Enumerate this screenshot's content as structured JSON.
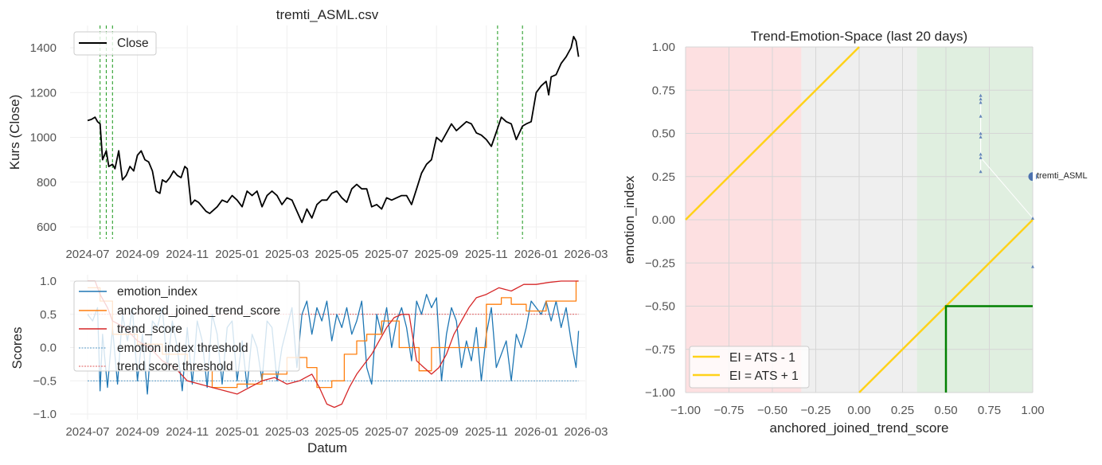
{
  "chart_data": [
    {
      "type": "line",
      "title": "tremti_ASML.csv",
      "xlabel": "",
      "ylabel": "Kurs (Close)",
      "x_ticks": [
        "2024-07",
        "2024-09",
        "2024-11",
        "2025-01",
        "2025-03",
        "2025-05",
        "2025-07",
        "2025-09",
        "2025-11",
        "2026-01",
        "2026-03"
      ],
      "y_ticks": [
        "600",
        "800",
        "1000",
        "1200",
        "1400"
      ],
      "ylim": [
        550,
        1500
      ],
      "xlim_months": [
        -0.7,
        20.3
      ],
      "grid": true,
      "legend": {
        "position": "top-left",
        "entries": [
          "Close"
        ]
      },
      "colors": {
        "close": "#000000",
        "vline": "#2ca02c"
      },
      "signal_lines_months": [
        0.5,
        0.75,
        1.0,
        16.45,
        17.45
      ],
      "series": [
        {
          "name": "Close",
          "x_months": [
            0.0,
            0.15,
            0.3,
            0.4,
            0.5,
            0.6,
            0.75,
            0.85,
            1.0,
            1.1,
            1.25,
            1.4,
            1.55,
            1.7,
            1.85,
            2.0,
            2.15,
            2.3,
            2.45,
            2.6,
            2.75,
            2.9,
            3.0,
            3.15,
            3.3,
            3.45,
            3.6,
            3.75,
            3.9,
            4.0,
            4.15,
            4.3,
            4.45,
            4.6,
            4.75,
            4.9,
            5.0,
            5.2,
            5.4,
            5.6,
            5.8,
            6.0,
            6.2,
            6.4,
            6.6,
            6.8,
            7.0,
            7.2,
            7.4,
            7.6,
            7.8,
            8.0,
            8.2,
            8.4,
            8.6,
            8.8,
            9.0,
            9.2,
            9.4,
            9.6,
            9.8,
            10.0,
            10.2,
            10.4,
            10.6,
            10.8,
            11.0,
            11.2,
            11.4,
            11.6,
            11.8,
            12.0,
            12.2,
            12.4,
            12.6,
            12.8,
            13.0,
            13.2,
            13.4,
            13.6,
            13.8,
            14.0,
            14.2,
            14.4,
            14.6,
            14.8,
            15.0,
            15.2,
            15.4,
            15.6,
            15.8,
            16.0,
            16.2,
            16.45,
            16.6,
            16.8,
            17.0,
            17.2,
            17.45,
            17.6,
            17.8,
            18.0,
            18.2,
            18.4,
            18.5,
            18.6,
            18.8,
            19.0,
            19.2,
            19.4,
            19.5,
            19.6,
            19.7
          ],
          "values": [
            1075,
            1080,
            1090,
            1070,
            1060,
            900,
            940,
            870,
            880,
            860,
            940,
            810,
            830,
            870,
            850,
            920,
            940,
            900,
            890,
            850,
            760,
            750,
            810,
            800,
            820,
            850,
            830,
            820,
            870,
            860,
            700,
            720,
            710,
            690,
            670,
            660,
            670,
            690,
            720,
            710,
            740,
            720,
            690,
            760,
            740,
            760,
            690,
            740,
            760,
            740,
            700,
            730,
            720,
            670,
            620,
            680,
            640,
            700,
            720,
            720,
            750,
            760,
            730,
            710,
            770,
            790,
            770,
            770,
            690,
            700,
            680,
            730,
            720,
            730,
            740,
            740,
            700,
            770,
            840,
            880,
            900,
            1000,
            980,
            1020,
            1060,
            1030,
            1050,
            1070,
            1060,
            1020,
            1010,
            990,
            960,
            1040,
            1090,
            1070,
            1060,
            990,
            1050,
            1060,
            1070,
            1200,
            1230,
            1250,
            1190,
            1270,
            1280,
            1330,
            1360,
            1400,
            1450,
            1430,
            1360
          ],
          "color": "#000000"
        }
      ]
    },
    {
      "type": "line",
      "title": "",
      "xlabel": "Datum",
      "ylabel": "Scores",
      "x_ticks": [
        "2024-07",
        "2024-09",
        "2024-11",
        "2025-01",
        "2025-03",
        "2025-05",
        "2025-07",
        "2025-09",
        "2025-11",
        "2026-01",
        "2026-03"
      ],
      "y_ticks": [
        "−1.0",
        "−0.5",
        "0.0",
        "0.5",
        "1.0"
      ],
      "ylim": [
        -1.05,
        1.05
      ],
      "grid": true,
      "legend": {
        "position": "top-left",
        "entries": [
          "emotion_index",
          "anchored_joined_trend_score",
          "trend_score",
          "emotion index threshold",
          "trend score threshold"
        ]
      },
      "thresholds": {
        "emotion_index_threshold": -0.5,
        "trend_score_threshold": 0.5
      },
      "series": [
        {
          "name": "emotion_index",
          "color": "#1f77b4",
          "x_months": [
            0.0,
            0.2,
            0.4,
            0.5,
            0.6,
            0.8,
            1.0,
            1.2,
            1.4,
            1.6,
            1.8,
            2.0,
            2.2,
            2.4,
            2.6,
            2.8,
            3.0,
            3.2,
            3.4,
            3.6,
            3.8,
            4.0,
            4.2,
            4.4,
            4.6,
            4.8,
            5.0,
            5.2,
            5.4,
            5.6,
            5.8,
            6.0,
            6.2,
            6.4,
            6.6,
            6.8,
            7.0,
            7.2,
            7.4,
            7.6,
            7.8,
            8.0,
            8.2,
            8.4,
            8.6,
            8.8,
            9.0,
            9.2,
            9.4,
            9.6,
            9.8,
            10.0,
            10.2,
            10.4,
            10.6,
            10.8,
            11.0,
            11.2,
            11.4,
            11.6,
            11.8,
            12.0,
            12.2,
            12.4,
            12.6,
            12.8,
            13.0,
            13.2,
            13.4,
            13.6,
            13.8,
            14.0,
            14.2,
            14.4,
            14.6,
            14.8,
            15.0,
            15.2,
            15.4,
            15.6,
            15.8,
            16.0,
            16.2,
            16.4,
            16.6,
            16.8,
            17.0,
            17.2,
            17.4,
            17.6,
            17.8,
            18.0,
            18.2,
            18.4,
            18.6,
            18.8,
            19.0,
            19.2,
            19.4,
            19.6,
            19.7
          ],
          "values": [
            0.5,
            0.4,
            0.6,
            -0.65,
            0.2,
            -0.6,
            0.3,
            -0.55,
            0.5,
            0.1,
            0.6,
            -0.5,
            0.2,
            -0.7,
            0.4,
            0.3,
            0.6,
            -0.3,
            0.4,
            0.0,
            -0.65,
            0.3,
            -0.55,
            0.4,
            0.1,
            -0.6,
            0.5,
            0.2,
            -0.55,
            0.3,
            0.4,
            -0.5,
            0.1,
            -0.6,
            0.2,
            0.0,
            -0.5,
            0.4,
            0.3,
            -0.5,
            0.0,
            0.3,
            0.6,
            -0.3,
            0.5,
            0.7,
            0.2,
            0.6,
            0.4,
            0.7,
            0.1,
            0.5,
            0.3,
            0.6,
            0.2,
            0.4,
            0.7,
            -0.3,
            -0.55,
            0.5,
            0.2,
            0.6,
            0.0,
            0.4,
            0.6,
            0.3,
            -0.2,
            0.7,
            0.5,
            0.8,
            0.6,
            0.75,
            -0.5,
            0.2,
            0.6,
            0.4,
            -0.3,
            0.1,
            -0.2,
            0.3,
            -0.5,
            0.2,
            0.6,
            -0.3,
            -0.1,
            0.1,
            -0.5,
            0.2,
            0.0,
            0.3,
            0.7,
            0.6,
            0.5,
            0.7,
            0.4,
            0.7,
            0.3,
            0.6,
            0.1,
            -0.3,
            0.25
          ]
        },
        {
          "name": "anchored_joined_trend_score",
          "color": "#ff7f0e",
          "x_months": [
            0.0,
            0.5,
            0.5,
            1.0,
            1.0,
            2.0,
            2.0,
            3.0,
            3.0,
            4.0,
            4.0,
            5.0,
            5.0,
            6.0,
            6.0,
            7.0,
            7.0,
            8.0,
            8.0,
            8.8,
            8.8,
            9.2,
            9.2,
            9.8,
            9.8,
            10.3,
            10.3,
            10.8,
            10.8,
            11.2,
            11.2,
            11.8,
            11.8,
            12.5,
            12.5,
            13.3,
            13.3,
            13.8,
            13.8,
            14.8,
            14.8,
            16.0,
            16.0,
            16.6,
            16.6,
            17.0,
            17.0,
            17.6,
            17.6,
            18.4,
            18.4,
            19.6,
            19.6,
            19.7
          ],
          "values": [
            0.9,
            0.9,
            0.7,
            0.7,
            0.2,
            0.2,
            0.05,
            0.05,
            -0.1,
            -0.1,
            -0.35,
            -0.35,
            -0.6,
            -0.6,
            -0.55,
            -0.55,
            -0.4,
            -0.4,
            -0.15,
            -0.15,
            -0.3,
            -0.3,
            -0.6,
            -0.6,
            -0.5,
            -0.5,
            -0.1,
            -0.1,
            0.1,
            0.1,
            0.2,
            0.2,
            0.4,
            0.4,
            0.0,
            0.0,
            -0.35,
            -0.35,
            0.0,
            0.0,
            0.0,
            0.0,
            0.65,
            0.65,
            0.75,
            0.75,
            0.65,
            0.65,
            0.55,
            0.55,
            0.7,
            0.7,
            1.0,
            1.0
          ]
        },
        {
          "name": "trend_score",
          "color": "#d62728",
          "x_months": [
            0.0,
            0.3,
            0.5,
            0.8,
            1.0,
            1.5,
            2.0,
            2.5,
            3.0,
            3.5,
            4.0,
            4.5,
            5.0,
            5.5,
            6.0,
            6.5,
            7.0,
            7.5,
            8.0,
            8.5,
            9.0,
            9.3,
            9.6,
            9.9,
            10.2,
            10.5,
            10.8,
            11.1,
            11.4,
            11.7,
            12.0,
            12.3,
            12.6,
            12.9,
            13.2,
            13.5,
            13.8,
            14.1,
            14.4,
            14.7,
            15.0,
            15.3,
            15.6,
            16.0,
            16.5,
            17.0,
            17.5,
            18.0,
            18.5,
            19.0,
            19.7
          ],
          "values": [
            1.0,
            1.0,
            0.8,
            0.6,
            0.4,
            0.3,
            0.1,
            0.0,
            -0.2,
            -0.3,
            -0.5,
            -0.55,
            -0.6,
            -0.65,
            -0.7,
            -0.6,
            -0.5,
            -0.45,
            -0.55,
            -0.5,
            -0.4,
            -0.6,
            -0.85,
            -0.9,
            -0.85,
            -0.6,
            -0.4,
            -0.25,
            -0.1,
            0.1,
            0.3,
            0.45,
            0.5,
            0.5,
            -0.2,
            -0.3,
            -0.4,
            -0.3,
            -0.1,
            0.2,
            0.4,
            0.6,
            0.75,
            0.8,
            0.9,
            0.85,
            0.95,
            0.95,
            0.98,
            1.0,
            1.0
          ]
        }
      ]
    },
    {
      "type": "scatter",
      "title": "Trend-Emotion-Space (last 20 days)",
      "xlabel": "anchored_joined_trend_score",
      "ylabel": "emotion_index",
      "xlim": [
        -1.0,
        1.0
      ],
      "ylim": [
        -1.0,
        1.0
      ],
      "x_ticks": [
        "−1.00",
        "−0.75",
        "−0.50",
        "−0.25",
        "0.00",
        "0.25",
        "0.50",
        "0.75",
        "1.00"
      ],
      "y_ticks": [
        "−1.00",
        "−0.75",
        "−0.50",
        "−0.25",
        "0.00",
        "0.25",
        "0.50",
        "0.75",
        "1.00"
      ],
      "grid": true,
      "regions": [
        {
          "name": "bearish",
          "x_range": [
            -1.0,
            -0.333
          ],
          "color": "#fde0e1"
        },
        {
          "name": "neutral",
          "x_range": [
            -0.333,
            0.333
          ],
          "color": "#efefef"
        },
        {
          "name": "bullish",
          "x_range": [
            0.333,
            1.0
          ],
          "color": "#e0efe0"
        }
      ],
      "lines": [
        {
          "name": "EI = ATS - 1",
          "slope": 1,
          "intercept": -1,
          "color": "#ffd21a"
        },
        {
          "name": "EI = ATS + 1",
          "slope": 1,
          "intercept": 1,
          "color": "#ffd21a"
        }
      ],
      "green_box": {
        "x_from": 0.5,
        "y_from": -0.5,
        "color": "#008000"
      },
      "legend": {
        "position": "lower-left",
        "entries": [
          "EI = ATS - 1",
          "EI = ATS + 1"
        ]
      },
      "trail_points": [
        {
          "x": 0.7,
          "y": 0.72
        },
        {
          "x": 0.7,
          "y": 0.7
        },
        {
          "x": 0.7,
          "y": 0.68
        },
        {
          "x": 0.7,
          "y": 0.6
        },
        {
          "x": 0.7,
          "y": 0.5
        },
        {
          "x": 0.7,
          "y": 0.48
        },
        {
          "x": 0.7,
          "y": 0.38
        },
        {
          "x": 0.7,
          "y": 0.36
        },
        {
          "x": 0.7,
          "y": 0.28
        },
        {
          "x": 1.0,
          "y": 0.01
        },
        {
          "x": 1.0,
          "y": -0.27
        }
      ],
      "current_point": {
        "label": "tremti_ASML",
        "x": 1.0,
        "y": 0.25
      },
      "marker_color": "#4c72b0"
    }
  ]
}
